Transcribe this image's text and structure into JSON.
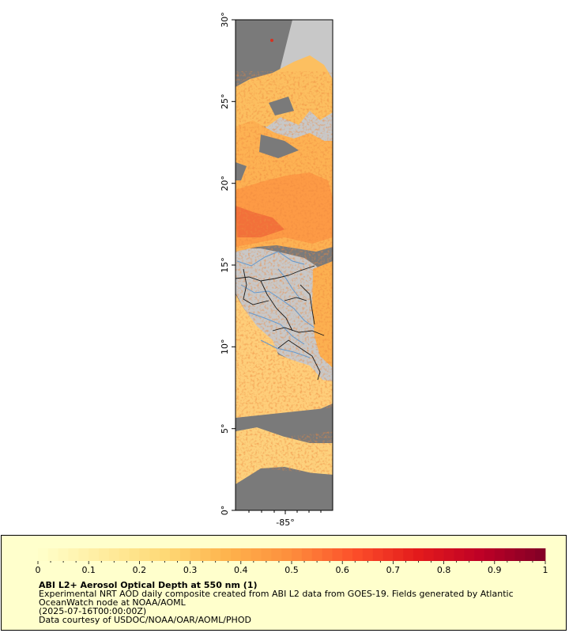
{
  "map": {
    "title": "",
    "lat_ticks": [
      "0°",
      "5°",
      "10°",
      "15°",
      "20°",
      "25°",
      "30°"
    ],
    "lon_ticks": [
      "-85°"
    ],
    "colors": {
      "land": "#c8c8c8",
      "no_data": "#7a7a7a",
      "country_borders": "#1a1a1a",
      "rivers": "#6699cc",
      "aod_low": "#fff2cc",
      "aod_high": "#800026"
    }
  },
  "legend": {
    "tick_labels": [
      "0",
      "0.1",
      "0.2",
      "0.3",
      "0.4",
      "0.5",
      "0.6",
      "0.7",
      "0.8",
      "0.9",
      "1"
    ],
    "range": [
      0,
      1
    ],
    "colormap": "YlOrRd",
    "title": "ABI L2+ Aerosol Optical Depth at 550 nm (1)",
    "lines": [
      "Experimental NRT AOD daily composite created from ABI L2 data from GOES-19. Fields generated by Atlantic",
      "OceanWatch node at NOAA/AOML",
      "(2025-07-16T00:00:00Z)",
      "Data courtesy of USDOC/NOAA/OAR/AOML/PHOD"
    ]
  }
}
